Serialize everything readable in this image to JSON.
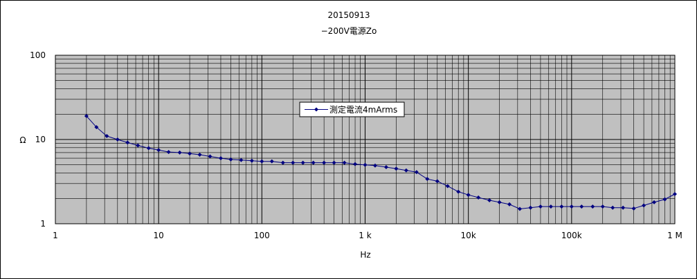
{
  "chart_data": {
    "type": "line",
    "title": "20150913",
    "subtitle": "−200V電源Zo",
    "xlabel": "Hz",
    "ylabel": "Ω",
    "x_scale": "log",
    "y_scale": "log",
    "xlim": [
      1,
      1000000
    ],
    "ylim": [
      1,
      100
    ],
    "x_ticks": [
      {
        "value": 1,
        "label": "1"
      },
      {
        "value": 10,
        "label": "10"
      },
      {
        "value": 100,
        "label": "100"
      },
      {
        "value": 1000,
        "label": "1 k"
      },
      {
        "value": 10000,
        "label": "10k"
      },
      {
        "value": 100000,
        "label": "100k"
      },
      {
        "value": 1000000,
        "label": "1 M"
      }
    ],
    "y_ticks": [
      {
        "value": 1,
        "label": "1"
      },
      {
        "value": 10,
        "label": "10"
      },
      {
        "value": 100,
        "label": "100"
      }
    ],
    "grid": true,
    "legend": {
      "position": "center",
      "entries": [
        "測定電流4mArms"
      ]
    },
    "series": [
      {
        "name": "測定電流4mArms",
        "color": "#000080",
        "marker": "diamond",
        "x": [
          2,
          2.5,
          3.15,
          4,
          5,
          6.3,
          8,
          10,
          12.5,
          16,
          20,
          25,
          31.5,
          40,
          50,
          63,
          80,
          100,
          125,
          160,
          200,
          250,
          315,
          400,
          500,
          630,
          800,
          1000,
          1250,
          1600,
          2000,
          2500,
          3150,
          4000,
          5000,
          6300,
          8000,
          10000,
          12500,
          16000,
          20000,
          25000,
          31500,
          40000,
          50000,
          63000,
          80000,
          100000,
          125000,
          160000,
          200000,
          250000,
          315000,
          400000,
          500000,
          630000,
          800000,
          1000000
        ],
        "y": [
          19,
          14,
          11,
          10,
          9.2,
          8.5,
          7.9,
          7.5,
          7.1,
          7.0,
          6.8,
          6.6,
          6.3,
          6.0,
          5.8,
          5.7,
          5.6,
          5.5,
          5.5,
          5.3,
          5.3,
          5.3,
          5.3,
          5.3,
          5.3,
          5.3,
          5.1,
          5.0,
          4.9,
          4.7,
          4.5,
          4.3,
          4.1,
          3.4,
          3.2,
          2.8,
          2.4,
          2.2,
          2.05,
          1.9,
          1.8,
          1.7,
          1.5,
          1.55,
          1.6,
          1.6,
          1.6,
          1.6,
          1.6,
          1.6,
          1.6,
          1.55,
          1.55,
          1.52,
          1.65,
          1.8,
          1.95,
          2.25
        ]
      }
    ]
  }
}
